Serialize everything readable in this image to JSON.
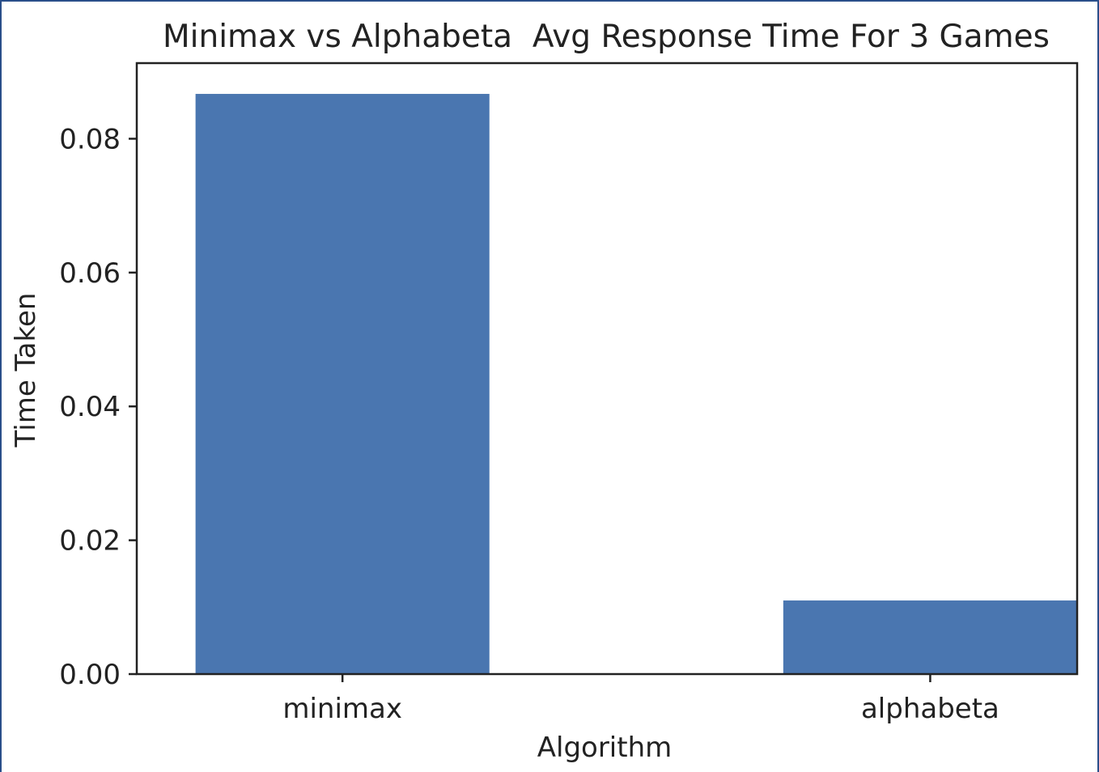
{
  "chart_data": {
    "type": "bar",
    "title": "Minimax vs Alphabeta  Avg Response Time For 3 Games",
    "xlabel": "Algorithm",
    "ylabel": "Time Taken",
    "categories": [
      "minimax",
      "alphabeta"
    ],
    "values": [
      0.0867,
      0.011
    ],
    "ylim": [
      0,
      0.0913
    ],
    "yticks": [
      "0.00",
      "0.02",
      "0.04",
      "0.06",
      "0.08"
    ],
    "grid": false,
    "bar_color": "#4a76b0"
  }
}
